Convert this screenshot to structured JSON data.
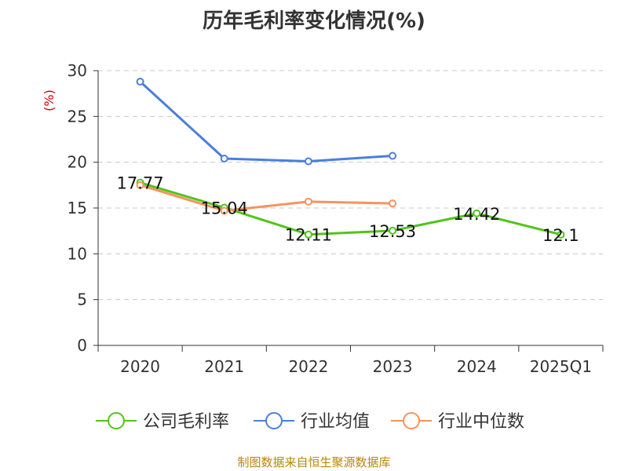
{
  "chart_data": {
    "type": "line",
    "title": "历年毛利率变化情况(%)",
    "ylabel": "(%)",
    "categories": [
      "2020",
      "2021",
      "2022",
      "2023",
      "2024",
      "2025Q1"
    ],
    "ylim": [
      0,
      30
    ],
    "yticks": [
      0,
      5,
      10,
      15,
      20,
      25,
      30
    ],
    "grid": true,
    "legend_position": "bottom",
    "series": [
      {
        "name": "公司毛利率",
        "color": "#52c41a",
        "values": [
          17.77,
          15.04,
          12.11,
          12.53,
          14.42,
          12.1
        ],
        "labels": [
          "17.77",
          "15.04",
          "12.11",
          "12.53",
          "14.42",
          "12.1"
        ]
      },
      {
        "name": "行业均值",
        "color": "#4a7fdc",
        "values": [
          28.8,
          20.4,
          20.1,
          20.7,
          null,
          null
        ]
      },
      {
        "name": "行业中位数",
        "color": "#f4945e",
        "values": [
          17.5,
          14.7,
          15.7,
          15.5,
          null,
          null
        ]
      }
    ]
  },
  "source": "制图数据来自恒生聚源数据库"
}
